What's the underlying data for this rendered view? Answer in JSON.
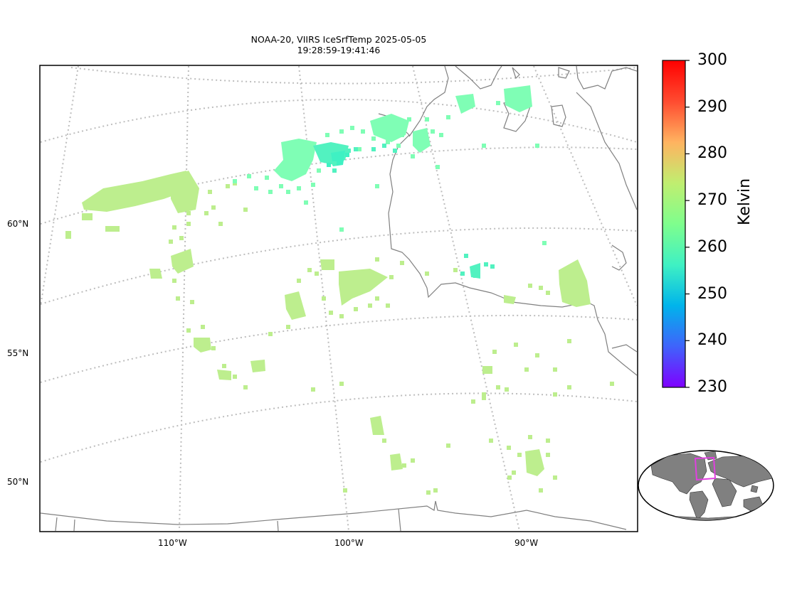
{
  "title": {
    "line1": "NOAA-20, VIIRS IceSrfTemp 2025-05-05",
    "line2": "19:28:59-19:41:46"
  },
  "latitude_labels": [
    {
      "text": "60°N",
      "value": 60
    },
    {
      "text": "55°N",
      "value": 55
    },
    {
      "text": "50°N",
      "value": 50
    }
  ],
  "longitude_labels": [
    {
      "text": "110°W",
      "value": -110
    },
    {
      "text": "100°W",
      "value": -100
    },
    {
      "text": "90°W",
      "value": -90
    }
  ],
  "colorbar": {
    "label": "Kelvin",
    "min": 230,
    "max": 300,
    "ticks": [
      "300",
      "290",
      "280",
      "270",
      "260",
      "250",
      "240",
      "230"
    ],
    "colors": [
      "#7f00ff",
      "#3f63fb",
      "#00b4eb",
      "#3ff1c3",
      "#7ffe8d",
      "#c0ee70",
      "#ffb360",
      "#ff4b30",
      "#ff0000"
    ]
  },
  "colors": {
    "coastline": "#808080",
    "gridline": "#bdbdbd",
    "inset_land": "#808080",
    "inset_box": "#e040e0"
  }
}
